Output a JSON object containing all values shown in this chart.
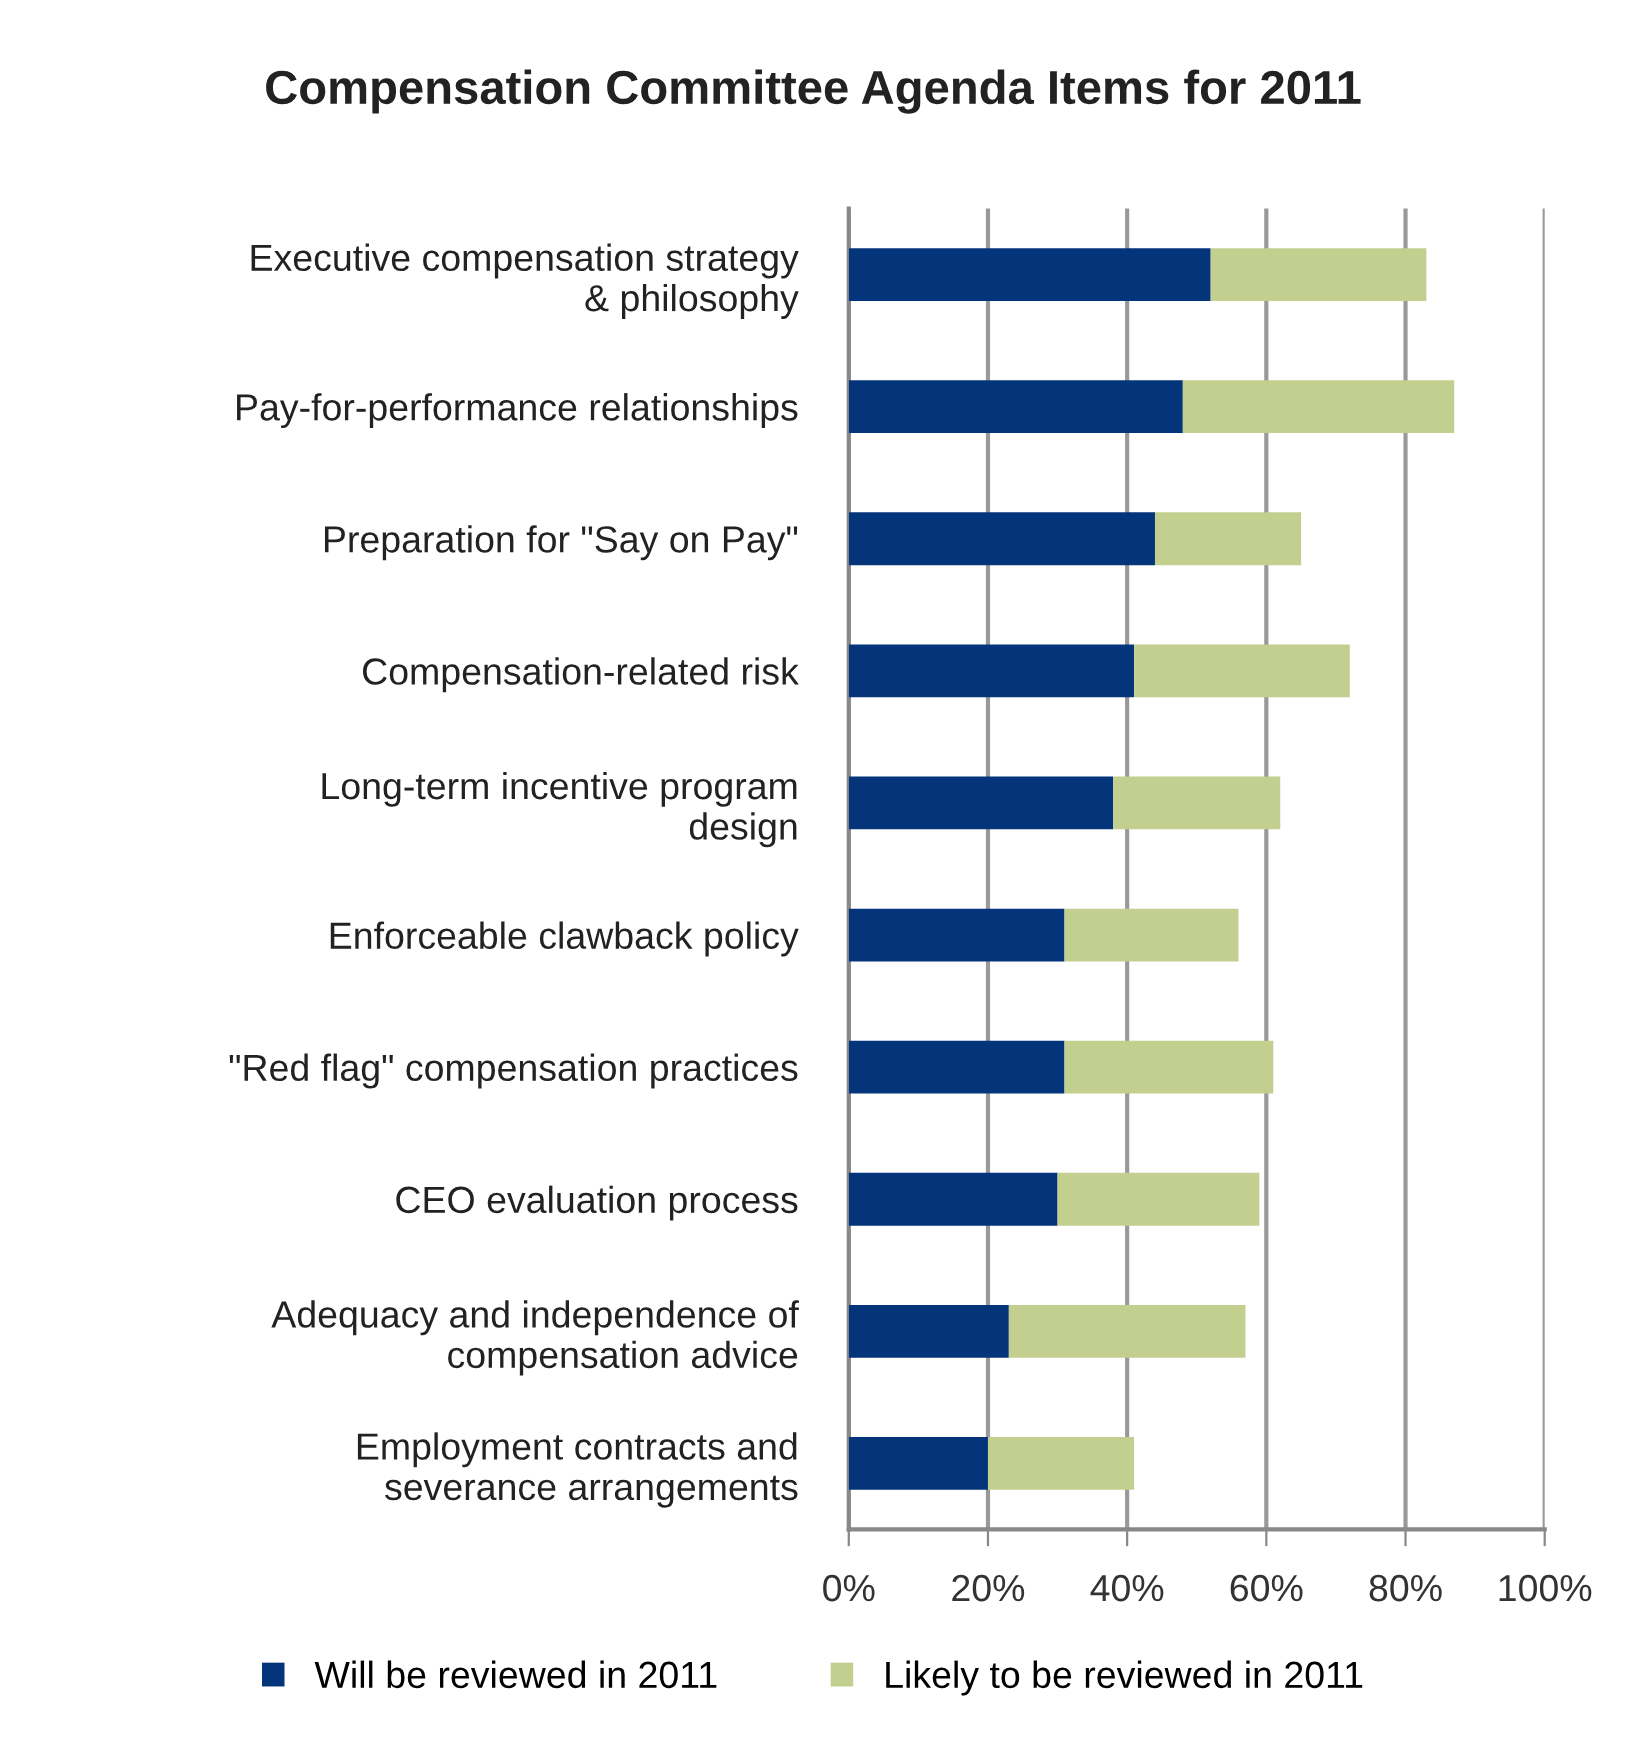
{
  "chart_data": {
    "type": "bar",
    "orientation": "horizontal",
    "stacked": true,
    "title": "Compensation Committee Agenda Items for 2011",
    "categories": [
      "Executive compensation strategy\n& philosophy",
      "Pay-for-performance relationships",
      "Preparation for \"Say on Pay\"",
      "Compensation-related risk",
      "Long-term incentive program\ndesign",
      "Enforceable clawback policy",
      "\"Red flag\" compensation practices",
      "CEO evaluation process",
      "Adequacy and independence of\ncompensation advice",
      "Employment contracts and\nseverance arrangements"
    ],
    "series": [
      {
        "name": "Will be reviewed in 2011",
        "color": "#04357a",
        "values": [
          52,
          48,
          44,
          41,
          38,
          31,
          31,
          30,
          23,
          20
        ]
      },
      {
        "name": "Likely to be reviewed in 2011",
        "color": "#c3cf8e",
        "values": [
          31,
          39,
          21,
          31,
          24,
          25,
          30,
          29,
          34,
          21
        ]
      }
    ],
    "xlim": [
      0,
      100
    ],
    "xticks": [
      {
        "value": 0,
        "label": "0%"
      },
      {
        "value": 20,
        "label": "20%"
      },
      {
        "value": 40,
        "label": "40%"
      },
      {
        "value": 60,
        "label": "60%"
      },
      {
        "value": 80,
        "label": "80%"
      },
      {
        "value": 100,
        "label": "100%"
      }
    ],
    "grid": "x",
    "legend": "bottom"
  }
}
